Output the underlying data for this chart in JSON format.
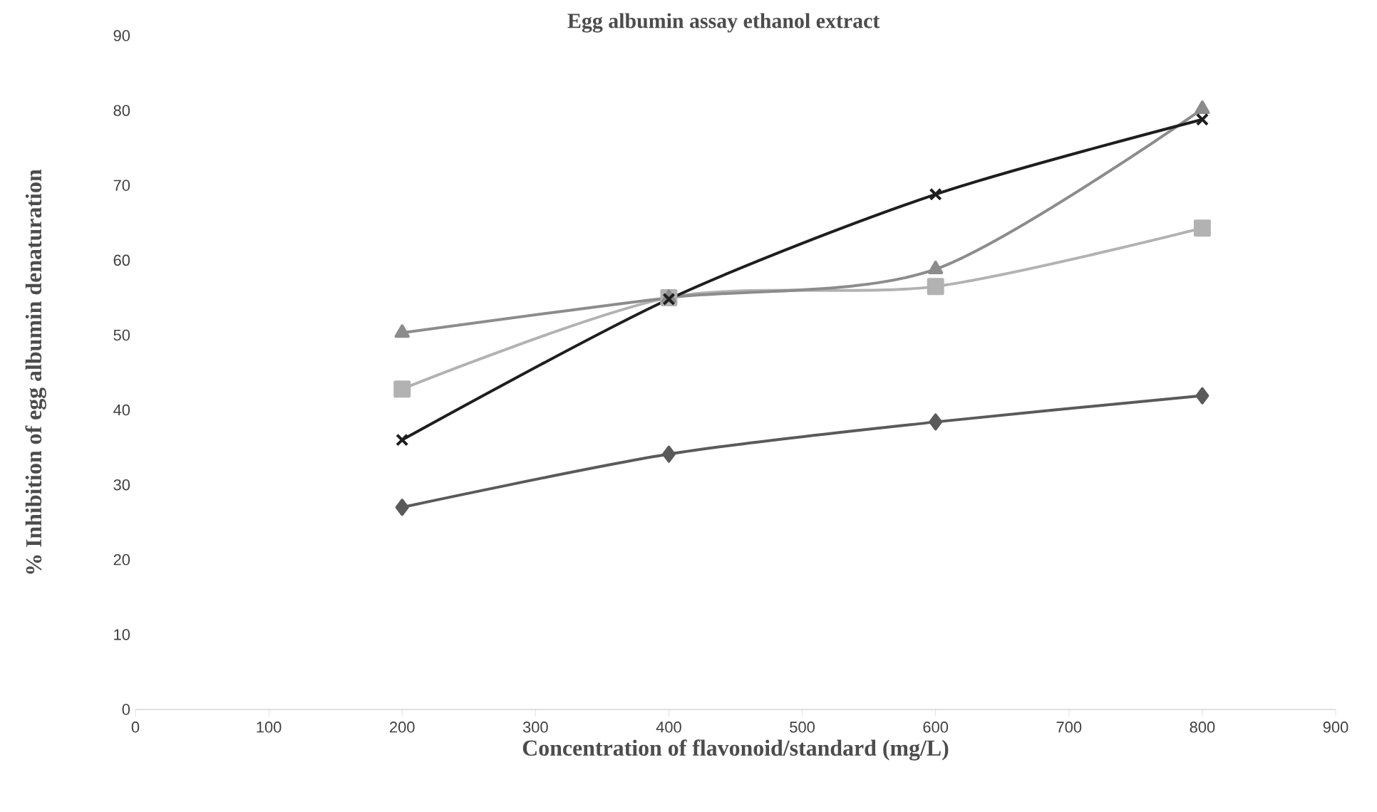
{
  "chart_data": {
    "type": "line",
    "title": "Egg albumin assay ethanol extract",
    "xlabel": "Concentration of flavonoid/standard (mg/L)",
    "ylabel": "% Inhibition of egg albumin denaturation",
    "x": [
      200,
      400,
      600,
      800
    ],
    "series": [
      {
        "color": "#5a5a5a",
        "marker": "diamond",
        "values": [
          27.0,
          34.1,
          38.4,
          41.9
        ]
      },
      {
        "color": "#b2b2b2",
        "marker": "square",
        "values": [
          42.8,
          55.0,
          56.5,
          64.3
        ]
      },
      {
        "color": "#8c8c8c",
        "marker": "triangle",
        "values": [
          50.3,
          55.0,
          58.8,
          80.2
        ]
      },
      {
        "color": "#1e1e1e",
        "marker": "cross",
        "values": [
          36.0,
          54.8,
          68.8,
          78.8
        ]
      }
    ],
    "xlim": [
      0,
      900
    ],
    "ylim": [
      0,
      90
    ],
    "xticks": [
      0,
      100,
      200,
      300,
      400,
      500,
      600,
      700,
      800,
      900
    ],
    "yticks": [
      0,
      10,
      20,
      30,
      40,
      50,
      60,
      70,
      80,
      90
    ],
    "grid": false,
    "line_style": "solid"
  }
}
